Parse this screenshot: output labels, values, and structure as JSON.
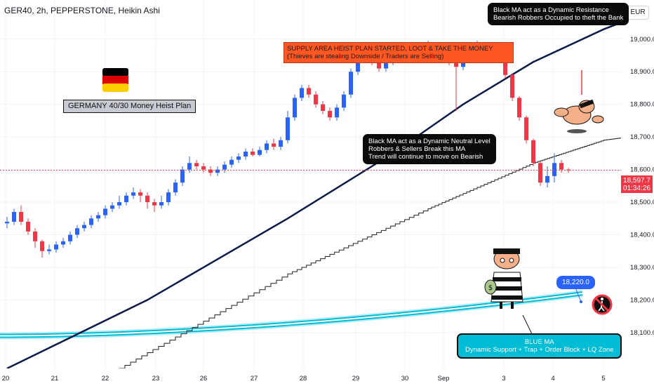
{
  "header": {
    "title": "GER40, 2h, PEPPERSTONE, Heikin Ashi"
  },
  "currency": "EUR",
  "price_tag": {
    "price": "18,597.7",
    "countdown": "01:34:26",
    "color": "#f23645"
  },
  "blue_tag": "18,220.0",
  "annotations": {
    "resistance": [
      "Black MA act as a Dynamic Resistance",
      "Bearish Robbers Occupied to theft the Bank"
    ],
    "supply": [
      "SUPPLY AREA HEIST PLAN STARTED, LOOT & TAKE THE MONEY",
      "(Thieves are stealing Downside / Traders are Selling)"
    ],
    "neutral": [
      "Black MA act as a Dynamic Neutral Level",
      "Robbers & Sellers Break this MA",
      "Trend will continue to move on Bearish"
    ],
    "title": "GERMANY 40/30 Money Heist Plan",
    "blue": [
      "BLUE MA",
      "Dynamic Support + Trap + Order Block + LQ Zone"
    ]
  },
  "icons": [
    "germany-flag-icon",
    "robber-icon",
    "robber-falling-icon",
    "no-pedestrian-icon"
  ],
  "colors": {
    "up": "#2962ff",
    "down": "#f23645",
    "ma_black": "#0d1b4a",
    "ma_blue": "#00bcd4",
    "grid": "#f0f3fa"
  },
  "chart_data": {
    "type": "candlestick",
    "title": "GER40, 2h, PEPPERSTONE, Heikin Ashi",
    "x_ticks": [
      "20",
      "21",
      "22",
      "23",
      "26",
      "27",
      "28",
      "29",
      "30",
      "Sep",
      "3",
      "4",
      "5"
    ],
    "y_ticks": [
      18100,
      18200,
      18300,
      18400,
      18500,
      18600,
      18700,
      18800,
      18900,
      19000
    ],
    "ylim": [
      17990,
      19120
    ],
    "last_price": 18597.7,
    "candles": [
      [
        18435,
        18440,
        18420,
        18455
      ],
      [
        18440,
        18470,
        18430,
        18480
      ],
      [
        18470,
        18440,
        18430,
        18490
      ],
      [
        18440,
        18410,
        18400,
        18450
      ],
      [
        18410,
        18380,
        18360,
        18420
      ],
      [
        18380,
        18350,
        18330,
        18385
      ],
      [
        18350,
        18355,
        18340,
        18370
      ],
      [
        18355,
        18370,
        18345,
        18380
      ],
      [
        18370,
        18380,
        18360,
        18390
      ],
      [
        18380,
        18400,
        18370,
        18410
      ],
      [
        18400,
        18420,
        18390,
        18430
      ],
      [
        18420,
        18430,
        18410,
        18440
      ],
      [
        18430,
        18450,
        18420,
        18460
      ],
      [
        18450,
        18460,
        18440,
        18470
      ],
      [
        18460,
        18480,
        18450,
        18490
      ],
      [
        18480,
        18490,
        18470,
        18500
      ],
      [
        18490,
        18500,
        18480,
        18520
      ],
      [
        18500,
        18520,
        18490,
        18530
      ],
      [
        18520,
        18530,
        18510,
        18545
      ],
      [
        18530,
        18520,
        18500,
        18540
      ],
      [
        18520,
        18500,
        18480,
        18530
      ],
      [
        18500,
        18490,
        18470,
        18510
      ],
      [
        18490,
        18500,
        18480,
        18520
      ],
      [
        18500,
        18530,
        18490,
        18540
      ],
      [
        18530,
        18560,
        18520,
        18570
      ],
      [
        18560,
        18600,
        18550,
        18610
      ],
      [
        18600,
        18620,
        18590,
        18640
      ],
      [
        18620,
        18610,
        18600,
        18630
      ],
      [
        18610,
        18600,
        18590,
        18620
      ],
      [
        18600,
        18590,
        18580,
        18610
      ],
      [
        18590,
        18600,
        18580,
        18610
      ],
      [
        18600,
        18615,
        18590,
        18625
      ],
      [
        18615,
        18630,
        18605,
        18640
      ],
      [
        18630,
        18640,
        18620,
        18650
      ],
      [
        18640,
        18655,
        18630,
        18665
      ],
      [
        18655,
        18645,
        18640,
        18665
      ],
      [
        18645,
        18660,
        18640,
        18670
      ],
      [
        18660,
        18680,
        18650,
        18690
      ],
      [
        18680,
        18670,
        18660,
        18695
      ],
      [
        18670,
        18690,
        18660,
        18700
      ],
      [
        18690,
        18760,
        18680,
        18780
      ],
      [
        18760,
        18820,
        18750,
        18830
      ],
      [
        18820,
        18850,
        18810,
        18860
      ],
      [
        18850,
        18830,
        18820,
        18860
      ],
      [
        18830,
        18800,
        18790,
        18840
      ],
      [
        18800,
        18780,
        18770,
        18810
      ],
      [
        18780,
        18760,
        18750,
        18790
      ],
      [
        18760,
        18790,
        18750,
        18800
      ],
      [
        18790,
        18830,
        18780,
        18840
      ],
      [
        18830,
        18900,
        18820,
        18910
      ],
      [
        18900,
        18940,
        18890,
        18960
      ],
      [
        18940,
        18960,
        18930,
        18980
      ],
      [
        18960,
        18930,
        18920,
        18970
      ],
      [
        18930,
        18910,
        18900,
        18945
      ],
      [
        18910,
        18930,
        18900,
        18940
      ],
      [
        18930,
        18950,
        18920,
        18960
      ],
      [
        18950,
        18970,
        18940,
        18980
      ],
      [
        18970,
        18960,
        18950,
        18980
      ],
      [
        18960,
        18940,
        18935,
        18970
      ],
      [
        18940,
        18960,
        18930,
        18965
      ],
      [
        18960,
        18985,
        18950,
        18995
      ],
      [
        18985,
        18975,
        18965,
        18990
      ],
      [
        18975,
        18945,
        18935,
        18980
      ],
      [
        18945,
        18930,
        18920,
        18950
      ],
      [
        18930,
        18915,
        18780,
        18935
      ],
      [
        18915,
        18940,
        18905,
        18945
      ],
      [
        18940,
        18965,
        18935,
        18975
      ],
      [
        18965,
        18985,
        18955,
        18995
      ],
      [
        18985,
        18970,
        18960,
        18990
      ],
      [
        18970,
        18975,
        18960,
        18980
      ],
      [
        18975,
        18960,
        18940,
        18985
      ],
      [
        18960,
        18890,
        18880,
        18965
      ],
      [
        18890,
        18820,
        18810,
        18895
      ],
      [
        18820,
        18760,
        18750,
        18825
      ],
      [
        18760,
        18690,
        18680,
        18765
      ],
      [
        18690,
        18620,
        18610,
        18695
      ],
      [
        18620,
        18560,
        18550,
        18625
      ],
      [
        18560,
        18580,
        18545,
        18610
      ],
      [
        18580,
        18620,
        18560,
        18650
      ],
      [
        18620,
        18600,
        18590,
        18630
      ],
      [
        18600,
        18597.7,
        18590,
        18605
      ]
    ],
    "ma_black": [
      [
        0,
        17990
      ],
      [
        20,
        18200
      ],
      [
        40,
        18450
      ],
      [
        55,
        18650
      ],
      [
        65,
        18800
      ],
      [
        75,
        18930
      ],
      [
        85,
        19030
      ],
      [
        88,
        19055
      ],
      [
        92,
        19070
      ],
      [
        95,
        19085
      ],
      [
        105,
        19060
      ]
    ],
    "ma_gray": [
      [
        16,
        17990
      ],
      [
        40,
        18280
      ],
      [
        60,
        18480
      ],
      [
        75,
        18620
      ],
      [
        85,
        18690
      ],
      [
        92,
        18710
      ],
      [
        100,
        18710
      ]
    ]
  }
}
